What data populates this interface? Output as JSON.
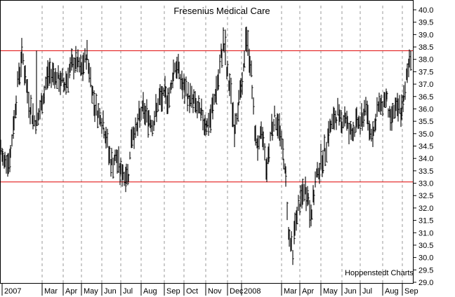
{
  "chart_data": {
    "type": "ohlc",
    "title": "Fresenius Medical Care",
    "credit": "Hoppenstedt Charts",
    "xlabel": "",
    "ylabel": "",
    "ylim": [
      29.0,
      40.0
    ],
    "y_ticks": [
      "40.0",
      "39.5",
      "39.0",
      "38.5",
      "38.0",
      "37.5",
      "37.0",
      "36.5",
      "36.0",
      "35.5",
      "35.0",
      "34.5",
      "34.0",
      "33.5",
      "33.0",
      "32.5",
      "32.0",
      "31.5",
      "31.0",
      "30.5",
      "30.0",
      "29.5",
      "29.0"
    ],
    "x_ticks": [
      "2007",
      "Mar",
      "Apr",
      "May",
      "Jun",
      "Jul",
      "Aug",
      "Sep",
      "Oct",
      "Nov",
      "Dec",
      "2008",
      "Mar",
      "Apr",
      "May",
      "Jun",
      "Jul",
      "Aug",
      "Sep"
    ],
    "grid": {
      "horizontal": false,
      "vertical": "dashed"
    },
    "reference_lines": [
      {
        "value": 38.35,
        "color": "#e00000"
      },
      {
        "value": 33.05,
        "color": "#e00000"
      }
    ],
    "series": [
      {
        "period": "2007-01 to 2008-09",
        "anchors": [
          [
            0,
            34.5
          ],
          [
            5,
            33.8
          ],
          [
            10,
            34.2
          ],
          [
            13,
            33.7
          ],
          [
            18,
            35.0
          ],
          [
            25,
            37.0
          ],
          [
            32,
            38.3
          ],
          [
            38,
            36.8
          ],
          [
            45,
            35.8
          ],
          [
            52,
            35.4
          ],
          [
            60,
            36.2
          ],
          [
            68,
            37.4
          ],
          [
            76,
            37.5
          ],
          [
            84,
            37.1
          ],
          [
            92,
            37.0
          ],
          [
            100,
            37.6
          ],
          [
            108,
            37.9
          ],
          [
            116,
            37.5
          ],
          [
            124,
            38.2
          ],
          [
            130,
            37.0
          ],
          [
            136,
            36.0
          ],
          [
            144,
            35.7
          ],
          [
            150,
            35.0
          ],
          [
            158,
            33.8
          ],
          [
            166,
            34.0
          ],
          [
            172,
            33.5
          ],
          [
            178,
            33.3
          ],
          [
            183,
            33.4
          ],
          [
            188,
            35.0
          ],
          [
            195,
            35.2
          ],
          [
            202,
            36.0
          ],
          [
            210,
            35.7
          ],
          [
            218,
            35.4
          ],
          [
            226,
            36.3
          ],
          [
            234,
            36.5
          ],
          [
            242,
            36.5
          ],
          [
            248,
            37.8
          ],
          [
            254,
            37.6
          ],
          [
            260,
            36.9
          ],
          [
            268,
            36.5
          ],
          [
            276,
            36.3
          ],
          [
            284,
            35.8
          ],
          [
            290,
            35.6
          ],
          [
            296,
            35.3
          ],
          [
            300,
            35.6
          ],
          [
            306,
            36.5
          ],
          [
            312,
            37.3
          ],
          [
            318,
            38.8
          ],
          [
            322,
            37.6
          ],
          [
            328,
            36.8
          ],
          [
            334,
            35.2
          ],
          [
            340,
            36.4
          ],
          [
            346,
            37.0
          ],
          [
            350,
            39.0
          ],
          [
            354,
            38.4
          ],
          [
            358,
            37.4
          ],
          [
            362,
            35.2
          ],
          [
            368,
            34.4
          ],
          [
            374,
            35.0
          ],
          [
            380,
            33.6
          ],
          [
            386,
            35.2
          ],
          [
            392,
            35.7
          ],
          [
            398,
            35.2
          ],
          [
            404,
            34.0
          ],
          [
            408,
            32.8
          ],
          [
            411,
            31.0
          ],
          [
            414,
            30.6
          ],
          [
            417,
            30.0
          ],
          [
            420,
            31.4
          ],
          [
            426,
            32.0
          ],
          [
            432,
            32.7
          ],
          [
            438,
            32.6
          ],
          [
            442,
            31.6
          ],
          [
            446,
            32.3
          ],
          [
            450,
            33.2
          ],
          [
            456,
            33.8
          ],
          [
            462,
            34.2
          ],
          [
            468,
            35.1
          ],
          [
            474,
            35.4
          ],
          [
            480,
            35.8
          ],
          [
            486,
            35.5
          ],
          [
            492,
            35.7
          ],
          [
            498,
            35.0
          ],
          [
            504,
            35.2
          ],
          [
            510,
            35.5
          ],
          [
            516,
            35.4
          ],
          [
            520,
            36.3
          ],
          [
            526,
            35.2
          ],
          [
            532,
            35.1
          ],
          [
            538,
            36.0
          ],
          [
            544,
            36.2
          ],
          [
            550,
            36.5
          ],
          [
            556,
            35.4
          ],
          [
            560,
            36.0
          ],
          [
            566,
            35.9
          ],
          [
            572,
            36.0
          ],
          [
            576,
            36.4
          ],
          [
            580,
            37.5
          ],
          [
            584,
            38.2
          ]
        ],
        "spikes": [
          {
            "x": 183,
            "low": 33.05
          },
          {
            "x": 264,
            "low": 36.1
          },
          {
            "x": 296,
            "low": 33.8
          },
          {
            "x": 380,
            "low": 33.05
          },
          {
            "x": 402,
            "low": 33.4
          },
          {
            "x": 417,
            "low": 29.7
          },
          {
            "x": 441,
            "low": 31.2
          },
          {
            "x": 528,
            "low": 33.2
          },
          {
            "x": 586,
            "high": 38.75
          },
          {
            "x": 321,
            "high": 39.2
          },
          {
            "x": 350,
            "high": 39.3
          },
          {
            "x": 121,
            "high": 38.45
          },
          {
            "x": 52,
            "high": 38.35
          }
        ]
      }
    ]
  }
}
